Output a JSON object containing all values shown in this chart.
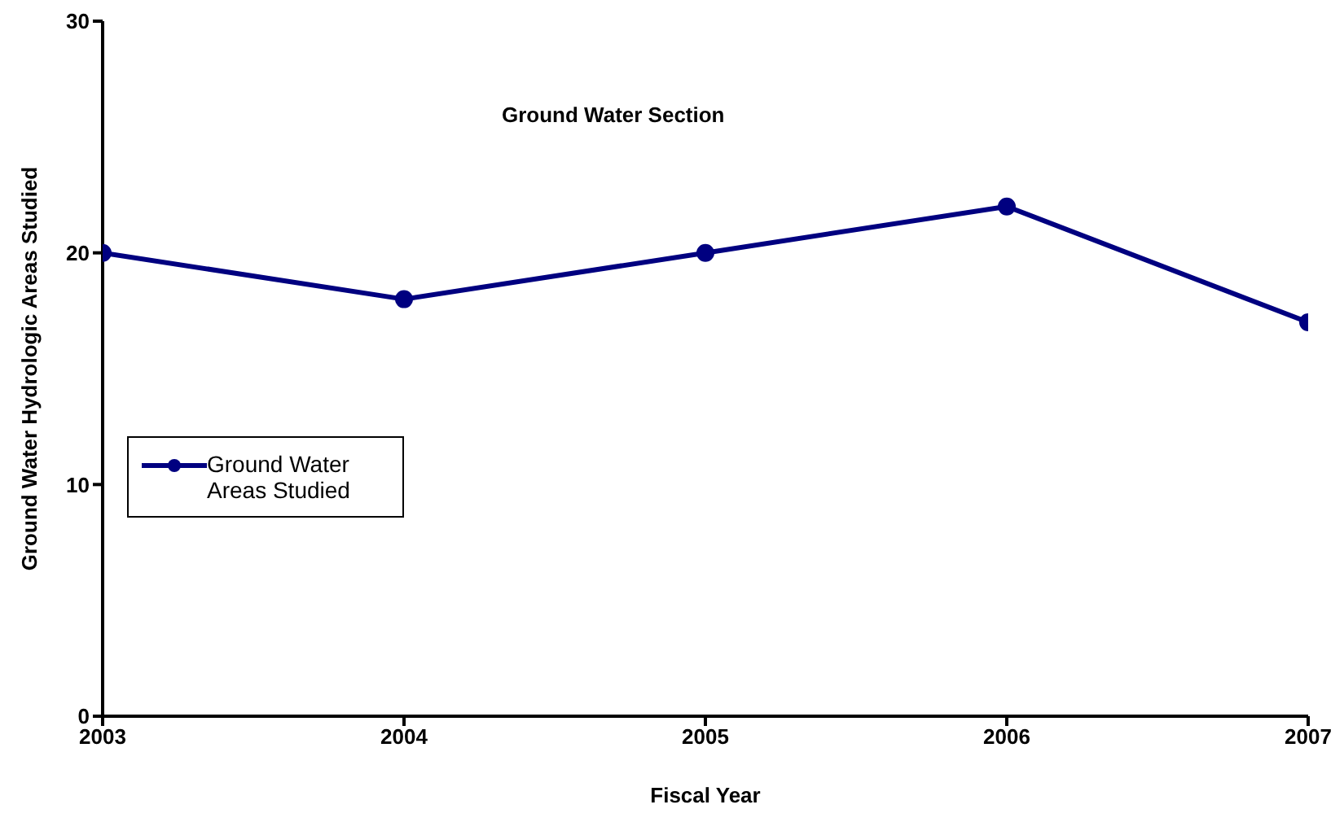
{
  "chart_data": {
    "type": "line",
    "title": "Ground Water Section",
    "xlabel": "Fiscal Year",
    "ylabel": "Ground Water Hydrologic Areas Studied",
    "x": [
      2003,
      2004,
      2005,
      2006,
      2007
    ],
    "series": [
      {
        "name": "Ground Water Areas Studied",
        "color": "#000080",
        "values": [
          20,
          18,
          20,
          22,
          17
        ]
      }
    ],
    "xlim": [
      2003,
      2007
    ],
    "xticks": [
      2003,
      2004,
      2005,
      2006,
      2007
    ],
    "ylim": [
      0,
      30
    ],
    "yticks": [
      0,
      10,
      20,
      30
    ],
    "grid": false,
    "legend": "left",
    "marker": "circle",
    "line_style": "solid"
  }
}
